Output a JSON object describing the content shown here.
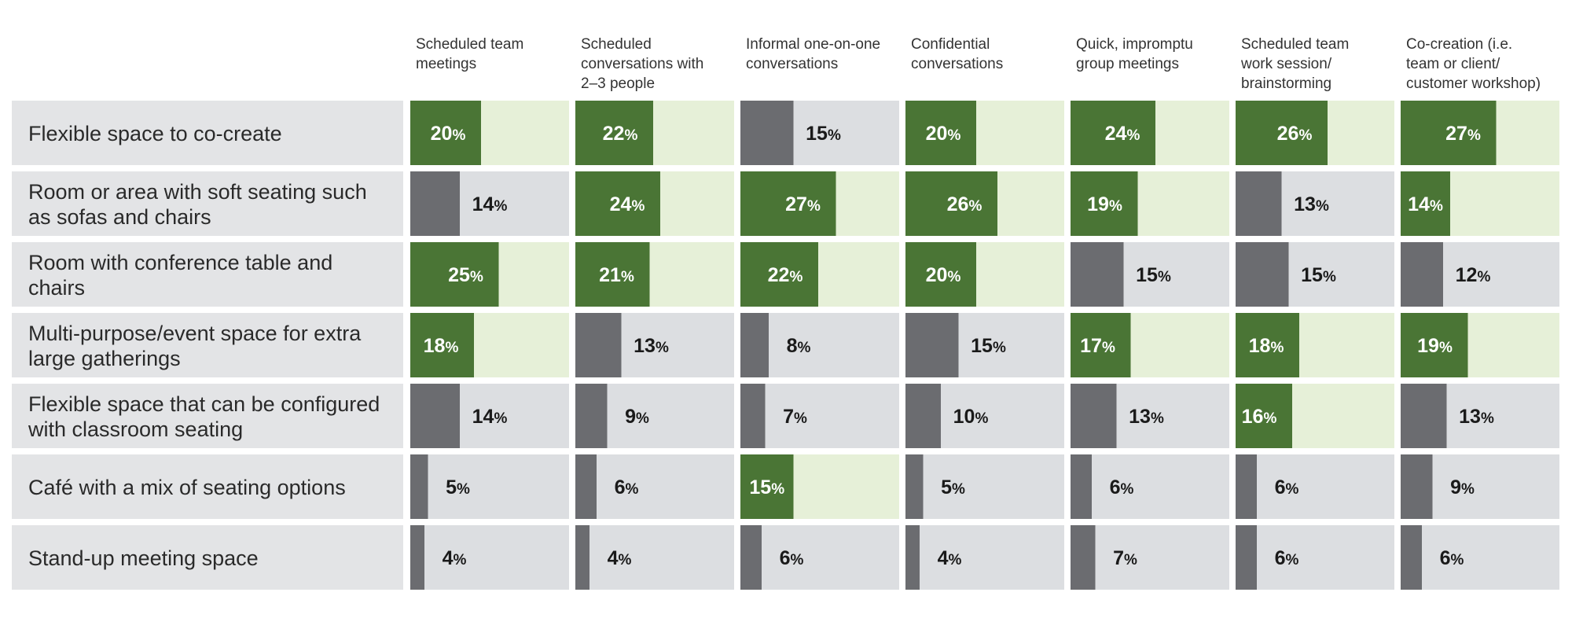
{
  "chart_data": {
    "type": "table",
    "title": "",
    "columns": [
      [
        "Scheduled team",
        "meetings"
      ],
      [
        "Scheduled",
        "conversations with",
        "2–3 people"
      ],
      [
        "Informal one-on-one",
        "conversations"
      ],
      [
        "Confidential",
        "conversations"
      ],
      [
        "Quick, impromptu",
        "group meetings"
      ],
      [
        "Scheduled team",
        "work session/",
        "brainstorming"
      ],
      [
        "Co-creation (i.e.",
        "team or client/",
        "customer workshop)"
      ]
    ],
    "rows": [
      [
        "Flexible space to co-create"
      ],
      [
        "Room or area with soft seating such",
        "as sofas and chairs"
      ],
      [
        "Room with conference table and",
        "chairs"
      ],
      [
        "Multi-purpose/event space for extra",
        "large gatherings"
      ],
      [
        "Flexible space that can be configured",
        "with classroom seating"
      ],
      [
        "Café with a mix of seating options"
      ],
      [
        "Stand-up meeting space"
      ]
    ],
    "values": [
      [
        20,
        22,
        15,
        20,
        24,
        26,
        27
      ],
      [
        14,
        24,
        27,
        26,
        19,
        13,
        14
      ],
      [
        25,
        21,
        22,
        20,
        15,
        15,
        12
      ],
      [
        18,
        13,
        8,
        15,
        17,
        18,
        19
      ],
      [
        14,
        9,
        7,
        10,
        13,
        16,
        13
      ],
      [
        5,
        6,
        15,
        5,
        6,
        6,
        9
      ],
      [
        4,
        4,
        6,
        4,
        7,
        6,
        6
      ]
    ],
    "highlighted": [
      [
        true,
        true,
        false,
        true,
        true,
        true,
        true
      ],
      [
        false,
        true,
        true,
        true,
        true,
        false,
        true
      ],
      [
        true,
        true,
        true,
        true,
        false,
        false,
        false
      ],
      [
        true,
        false,
        false,
        false,
        true,
        true,
        true
      ],
      [
        false,
        false,
        false,
        false,
        false,
        true,
        false
      ],
      [
        false,
        false,
        true,
        false,
        false,
        false,
        false
      ],
      [
        false,
        false,
        false,
        false,
        false,
        false,
        false
      ]
    ],
    "value_suffix": "%",
    "colors": {
      "highlight_bar": "#4a7535",
      "highlight_bg": "#e6f0d8",
      "normal_bar": "#6b6c70",
      "normal_bg": "#dcdee1",
      "row_label_bg": "#e3e4e6",
      "highlight_text": "#ffffff",
      "normal_text": "#1a1a1a"
    }
  }
}
